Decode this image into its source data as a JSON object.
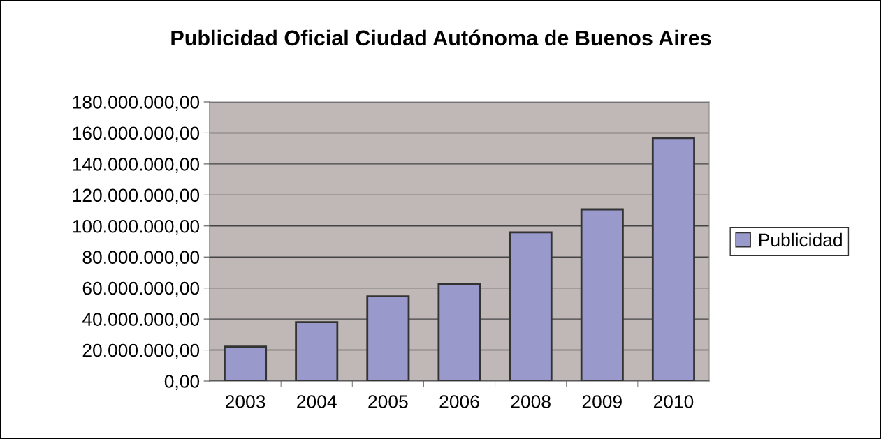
{
  "chart_data": {
    "type": "bar",
    "title": "Publicidad Oficial Ciudad Autónoma de Buenos Aires",
    "categories": [
      "2003",
      "2004",
      "2005",
      "2006",
      "2008",
      "2009",
      "2010"
    ],
    "series": [
      {
        "name": "Publicidad",
        "color": "#9999cc",
        "values": [
          22200000,
          38000000,
          54600000,
          62700000,
          95900000,
          110700000,
          156700000
        ]
      }
    ],
    "ylim": [
      0,
      180000000
    ],
    "yticks": [
      {
        "value": 0,
        "label": "0,00"
      },
      {
        "value": 20000000,
        "label": "20.000.000,00"
      },
      {
        "value": 40000000,
        "label": "40.000.000,00"
      },
      {
        "value": 60000000,
        "label": "60.000.000,00"
      },
      {
        "value": 80000000,
        "label": "80.000.000,00"
      },
      {
        "value": 100000000,
        "label": "100.000.000,00"
      },
      {
        "value": 120000000,
        "label": "120.000.000,00"
      },
      {
        "value": 140000000,
        "label": "140.000.000,00"
      },
      {
        "value": 160000000,
        "label": "160.000.000,00"
      },
      {
        "value": 180000000,
        "label": "180.000.000,00"
      }
    ],
    "grid": "y",
    "legend": "right"
  }
}
